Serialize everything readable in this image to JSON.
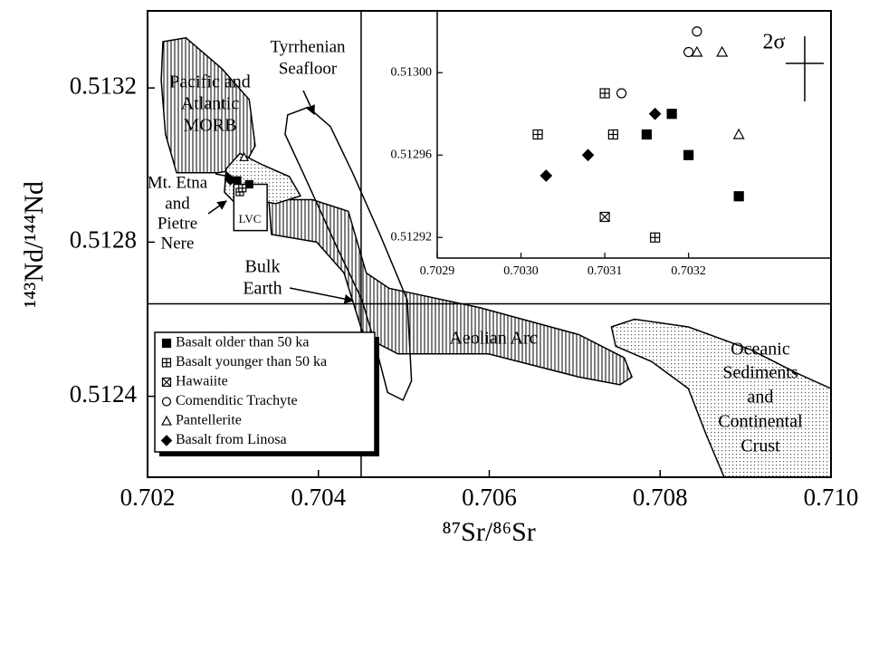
{
  "chart_data": [
    {
      "type": "scatter",
      "xlabel": "⁸⁷Sr/⁸⁶Sr",
      "ylabel": "¹⁴³Nd/¹⁴⁴Nd",
      "xlim": [
        0.702,
        0.71
      ],
      "ylim": [
        0.51219,
        0.5134
      ],
      "xticks": [
        0.702,
        0.704,
        0.706,
        0.708,
        {
          "value": 0.71,
          "label": "0.710"
        }
      ],
      "yticks": [
        0.5124,
        0.5128,
        0.5132
      ],
      "bulk_earth": {
        "label": [
          "Bulk",
          "Earth"
        ],
        "x": 0.7045,
        "y": 0.51264
      },
      "fields": [
        {
          "label": [
            "Aeolian Arc"
          ],
          "fill": "hatch",
          "x": [
            0.70342,
            0.70393,
            0.70435,
            0.70456,
            0.70483,
            0.70589,
            0.70705,
            0.70758,
            0.70767,
            0.70753,
            0.70705,
            0.70599,
            0.70493,
            0.70467,
            0.70451,
            0.7043,
            0.70398,
            0.70345
          ],
          "y": [
            0.51291,
            0.51291,
            0.51288,
            0.51272,
            0.51268,
            0.51263,
            0.51256,
            0.5125,
            0.51245,
            0.51243,
            0.51245,
            0.51251,
            0.51251,
            0.51254,
            0.51257,
            0.51272,
            0.5128,
            0.51282
          ]
        },
        {
          "label": [
            "Oceanic",
            "Sediments",
            "and",
            "Continental",
            "Crust"
          ],
          "fill": "dots",
          "x": [
            0.70743,
            0.7077,
            0.70833,
            0.70907,
            0.7096,
            0.71,
            0.71,
            0.70875,
            0.70854,
            0.70833,
            0.7079,
            0.70748
          ],
          "y": [
            0.51258,
            0.5126,
            0.51258,
            0.51252,
            0.51246,
            0.51242,
            0.51219,
            0.51219,
            0.5123,
            0.51242,
            0.51249,
            0.51253
          ]
        },
        {
          "label": [
            "Pacific and",
            "Atlantic",
            "MORB"
          ],
          "fill": "hatch",
          "x": [
            0.70218,
            0.70245,
            0.70287,
            0.70319,
            0.70326,
            0.70311,
            0.70282,
            0.70255,
            0.70234,
            0.70221,
            0.70216
          ],
          "y": [
            0.51332,
            0.51333,
            0.51325,
            0.51317,
            0.51305,
            0.51299,
            0.51298,
            0.51298,
            0.51298,
            0.51308,
            0.51322
          ]
        },
        {
          "label": [
            "Mt. Etna",
            "and",
            "Pietre",
            "Nere"
          ],
          "fill": "dots",
          "x": [
            0.70292,
            0.70308,
            0.70335,
            0.70366,
            0.70379,
            0.7035,
            0.70324,
            0.70303,
            0.7029
          ],
          "y": [
            0.51299,
            0.51303,
            0.513,
            0.51297,
            0.51292,
            0.5129,
            0.51291,
            0.5129,
            0.51293
          ]
        },
        {
          "label": [
            "Tyrrhenian",
            "Seafloor"
          ],
          "fill": "none",
          "x": [
            0.70364,
            0.70388,
            0.70414,
            0.7044,
            0.70472,
            0.70504,
            0.70509,
            0.70499,
            0.70481,
            0.70467,
            0.70451,
            0.70421,
            0.70382,
            0.70361
          ],
          "y": [
            0.51313,
            0.51315,
            0.5131,
            0.51298,
            0.51282,
            0.51265,
            0.51244,
            0.51239,
            0.51241,
            0.51253,
            0.51265,
            0.51279,
            0.51298,
            0.51308
          ]
        },
        {
          "label": [
            "LVC"
          ],
          "fill": "white",
          "x": [
            0.70301,
            0.7034,
            0.7034,
            0.70301
          ],
          "y": [
            0.51295,
            0.51295,
            0.51283,
            0.51283
          ]
        }
      ],
      "series": [
        {
          "name": "Basalt older than 50 ka",
          "marker": "square-filled",
          "x": [
            0.70305,
            0.70319
          ],
          "y": [
            0.51296,
            0.51295
          ]
        },
        {
          "name": "Basalt younger than 50 ka",
          "marker": "square-plus",
          "x": [
            0.70308,
            0.70311
          ],
          "y": [
            0.51293,
            0.51294
          ]
        },
        {
          "name": "Hawaiite",
          "marker": "square-x",
          "x": [],
          "y": []
        },
        {
          "name": "Comenditic Trachyte",
          "marker": "circle",
          "x": [],
          "y": []
        },
        {
          "name": "Pantellerite",
          "marker": "triangle",
          "x": [
            0.70313
          ],
          "y": [
            0.51302
          ]
        },
        {
          "name": "Basalt from Linosa",
          "marker": "diamond",
          "x": [
            0.70297
          ],
          "y": [
            0.51296
          ]
        }
      ]
    },
    {
      "type": "scatter",
      "xlim": [
        0.7029,
        0.70337
      ],
      "ylim": [
        0.51291,
        0.51303
      ],
      "xticks": [
        0.7029,
        {
          "value": 0.703,
          "label": "0.7030"
        },
        0.7031,
        0.7032
      ],
      "yticks": [
        {
          "value": 0.513,
          "label": "0.51300"
        },
        0.51296,
        0.51292
      ],
      "error_label": "2σ",
      "series": [
        {
          "marker": "square-filled",
          "x": [
            0.70318,
            0.70315,
            0.7032,
            0.70326
          ],
          "y": [
            0.51298,
            0.51297,
            0.51296,
            0.51294
          ]
        },
        {
          "marker": "square-plus",
          "x": [
            0.70302,
            0.7031,
            0.70311,
            0.70316
          ],
          "y": [
            0.51297,
            0.51299,
            0.51297,
            0.51292
          ]
        },
        {
          "marker": "square-x",
          "x": [
            0.7031
          ],
          "y": [
            0.51293
          ]
        },
        {
          "marker": "circle",
          "x": [
            0.70321,
            0.7032,
            0.70312
          ],
          "y": [
            0.51302,
            0.51301,
            0.51299
          ]
        },
        {
          "marker": "triangle",
          "x": [
            0.70321,
            0.70324,
            0.70326
          ],
          "y": [
            0.51301,
            0.51301,
            0.51297
          ]
        },
        {
          "marker": "diamond",
          "x": [
            0.70303,
            0.70308,
            0.70316
          ],
          "y": [
            0.51295,
            0.51296,
            0.51298
          ]
        }
      ]
    }
  ]
}
